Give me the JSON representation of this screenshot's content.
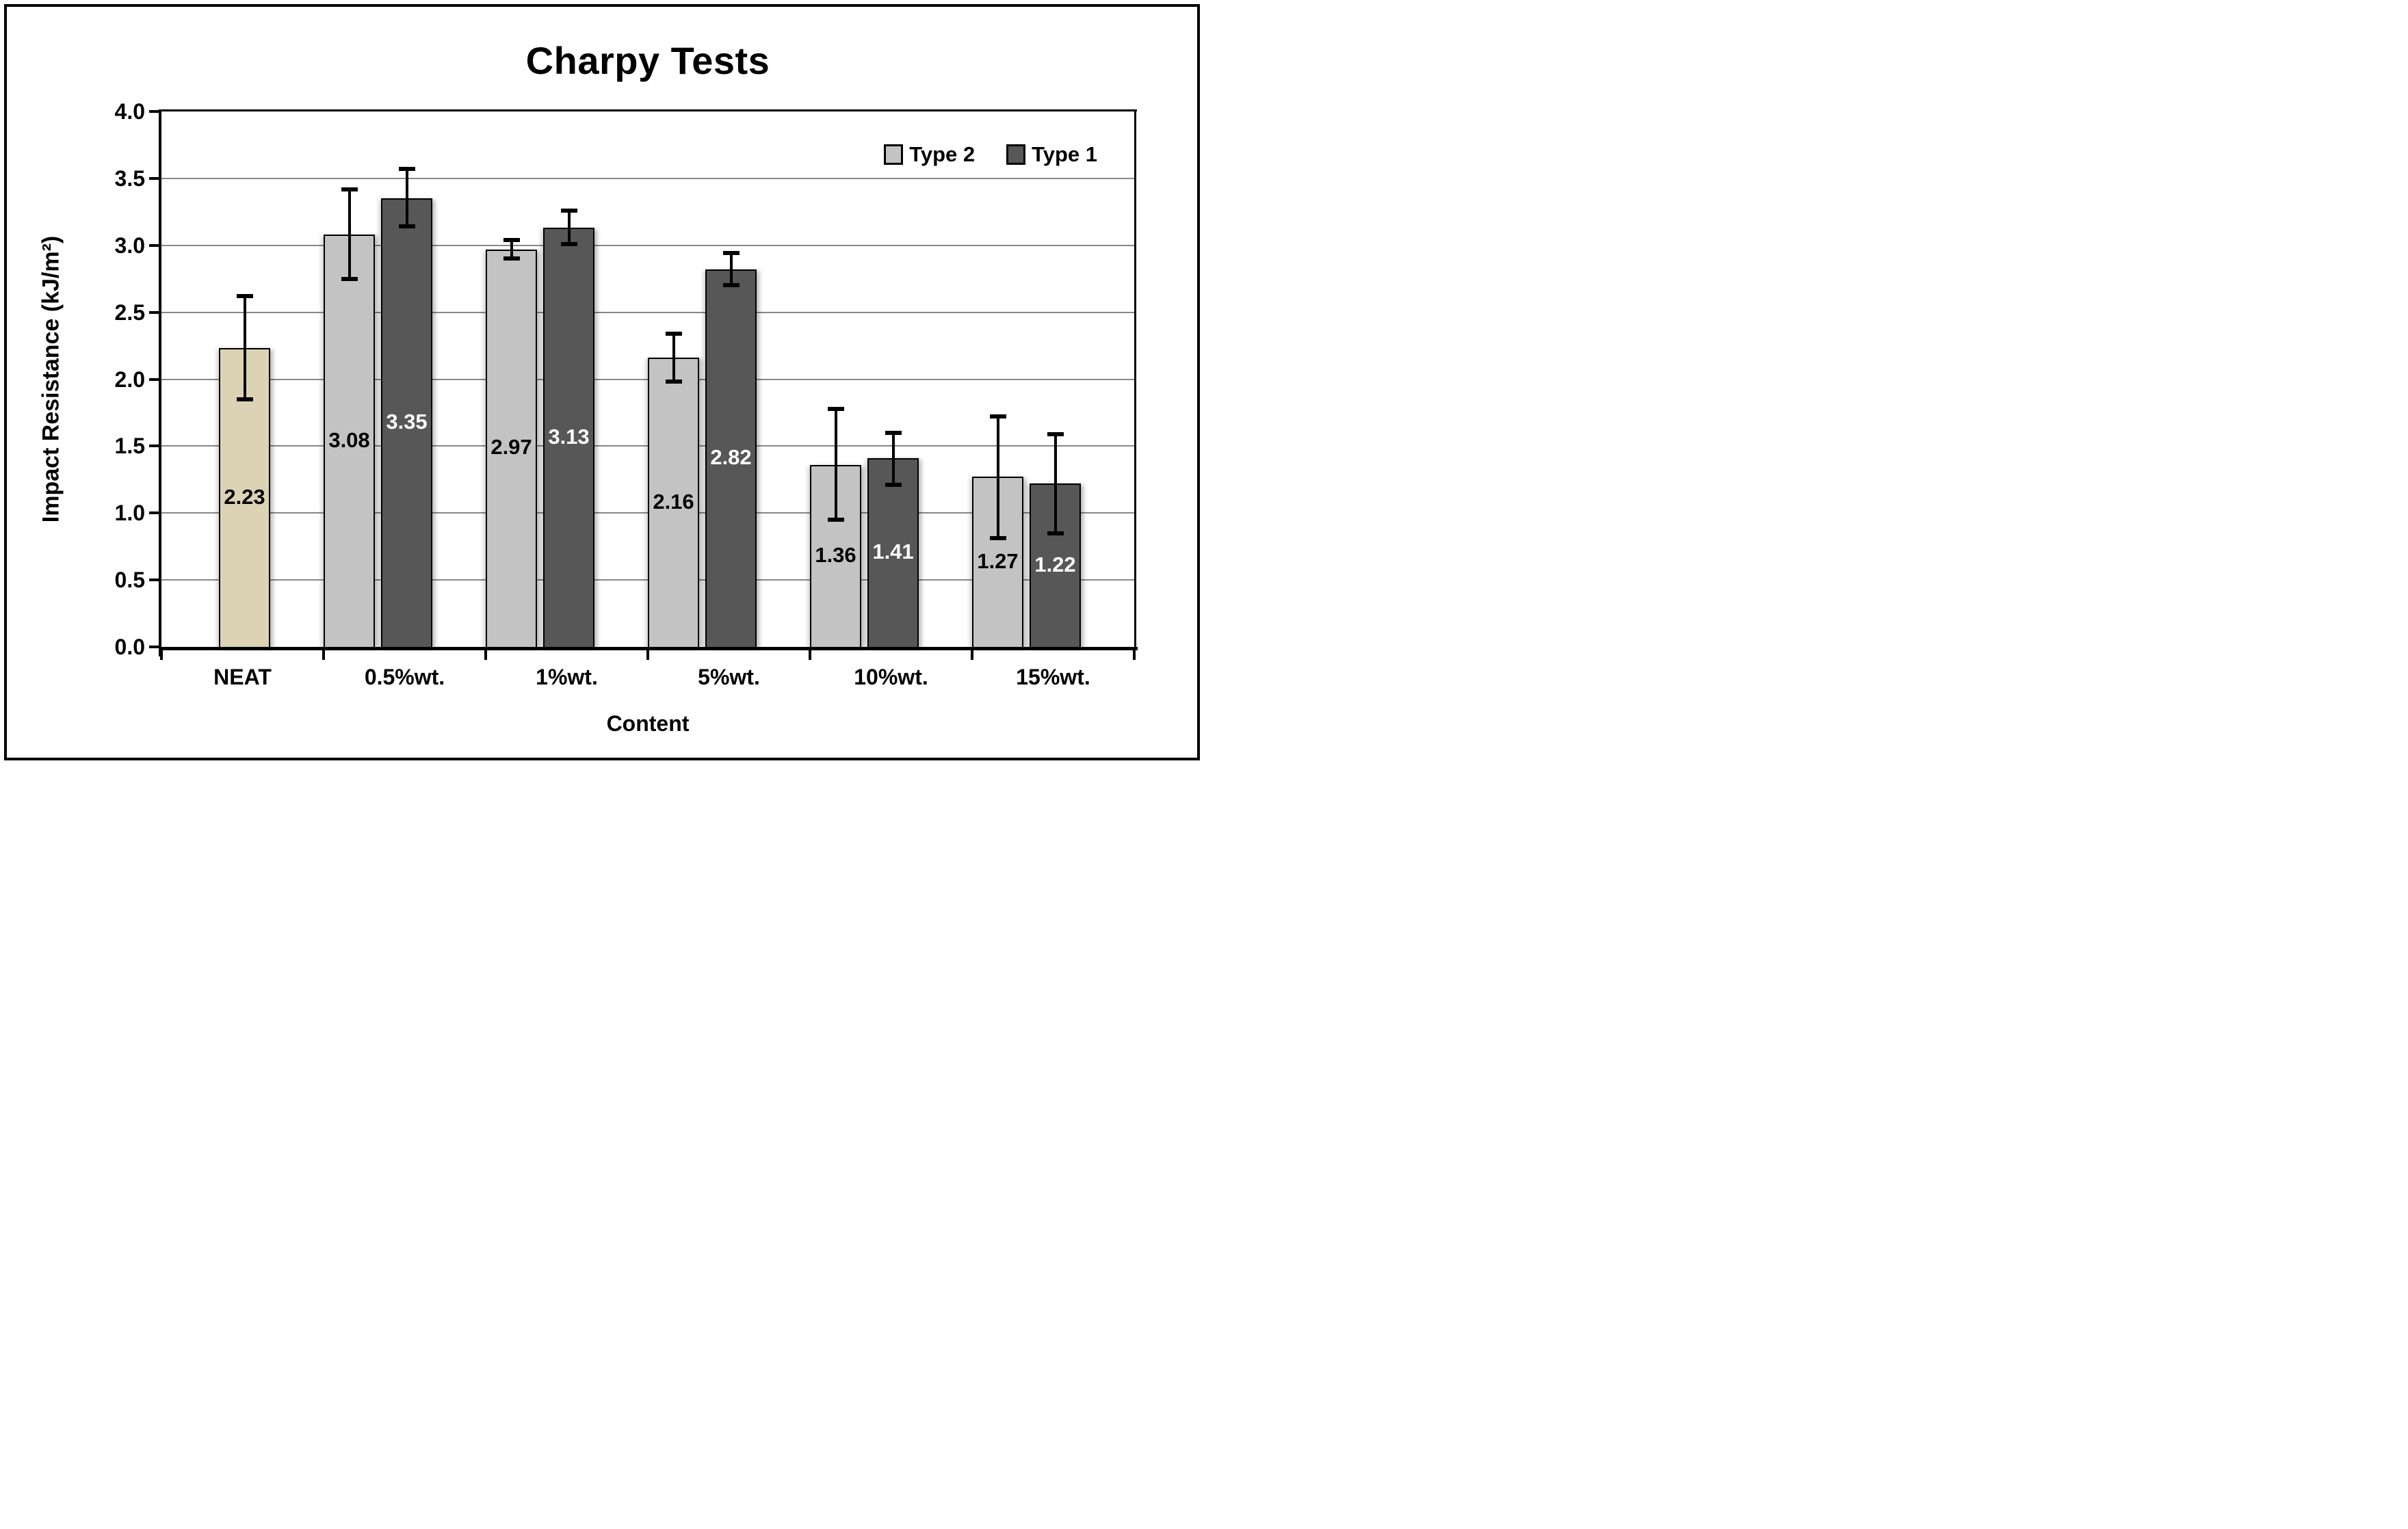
{
  "figure": {
    "title": "Charpy Tests"
  },
  "chart_data": {
    "type": "bar",
    "title": "Charpy Tests",
    "xlabel": "Content",
    "ylabel": "Impact Resistance (kJ/m²)",
    "ylim": [
      0.0,
      4.0
    ],
    "ytick_step": 0.5,
    "ytick_labels": [
      "0.0",
      "0.5",
      "1.0",
      "1.5",
      "2.0",
      "2.5",
      "3.0",
      "3.5",
      "4.0"
    ],
    "grid": true,
    "gridline_color": "#888888",
    "legend_position": "top-right",
    "legend": [
      "Type 2",
      "Type 1"
    ],
    "categories": [
      "NEAT",
      "0.5%wt.",
      "1%wt.",
      "5%wt.",
      "10%wt.",
      "15%wt."
    ],
    "series": [
      {
        "name": "Type 2",
        "color": "#C3C3C3",
        "label_color": "#000000",
        "in_legend": true,
        "values": [
          null,
          3.08,
          2.97,
          2.16,
          1.36,
          1.27
        ],
        "err_plus": [
          null,
          0.34,
          0.07,
          0.18,
          0.42,
          0.45
        ],
        "err_minus": [
          null,
          0.33,
          0.07,
          0.18,
          0.41,
          0.46
        ]
      },
      {
        "name": "Type 1",
        "color": "#575757",
        "label_color": "#FFFFFF",
        "in_legend": true,
        "values": [
          null,
          3.35,
          3.13,
          2.82,
          1.41,
          1.22
        ],
        "err_plus": [
          null,
          0.22,
          0.13,
          0.12,
          0.19,
          0.37
        ],
        "err_minus": [
          null,
          0.21,
          0.12,
          0.12,
          0.2,
          0.37
        ]
      },
      {
        "name": "NEAT",
        "color": "#DBD3B4",
        "label_color": "#000000",
        "in_legend": false,
        "values": [
          2.23,
          null,
          null,
          null,
          null,
          null
        ],
        "err_plus": [
          0.39,
          null,
          null,
          null,
          null,
          null
        ],
        "err_minus": [
          0.38,
          null,
          null,
          null,
          null,
          null
        ]
      }
    ]
  }
}
